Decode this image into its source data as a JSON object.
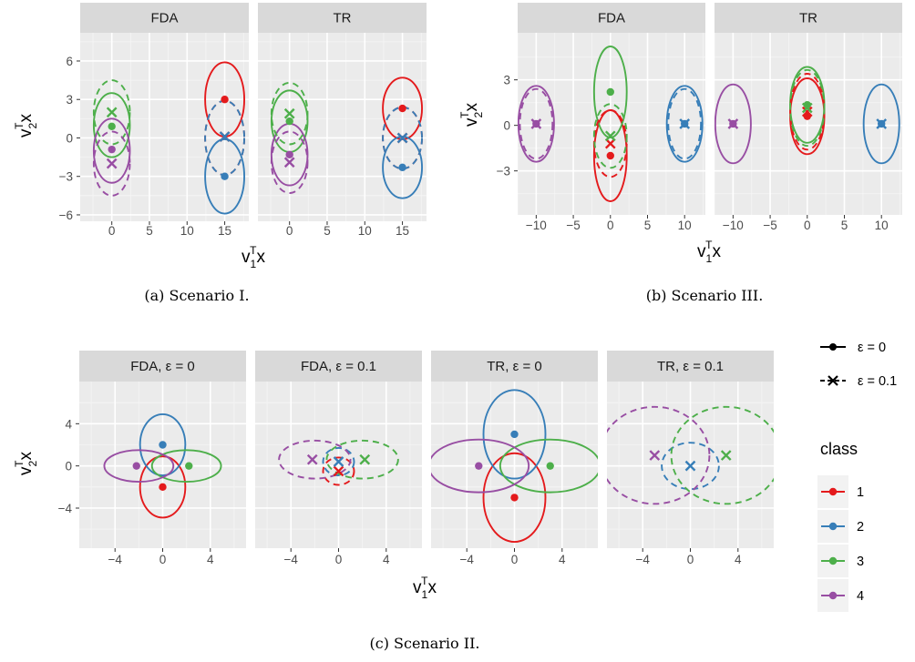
{
  "colors": {
    "1": "#e41a1c",
    "2": "#377eb8",
    "3": "#4daf4a",
    "4": "#984ea3",
    "panel_bg": "#ebebeb",
    "strip_bg": "#d9d9d9",
    "grid_major": "#ffffff"
  },
  "legend": {
    "linetype_entries": [
      {
        "label": "ε = 0",
        "style": "solid",
        "shape": "point"
      },
      {
        "label": "ε = 0.1",
        "style": "dashed",
        "shape": "cross"
      }
    ],
    "class_title": "class",
    "class_entries": [
      {
        "label": "1",
        "class": "1"
      },
      {
        "label": "2",
        "class": "2"
      },
      {
        "label": "3",
        "class": "3"
      },
      {
        "label": "4",
        "class": "4"
      }
    ]
  },
  "chart_data": [
    {
      "id": "a",
      "type": "scatter",
      "caption": "(a) Scenario I.",
      "xlabel": "v",
      "ylabel": "v",
      "xlim": [
        -4.2,
        18.2
      ],
      "ylim": [
        -6.5,
        8.2
      ],
      "xticks": [
        0,
        5,
        10,
        15
      ],
      "xtick_labels": [
        "0",
        "5",
        "10",
        "15"
      ],
      "yticks": [
        -6,
        -3,
        0,
        3,
        6
      ],
      "ytick_labels": [
        "−6",
        "−3",
        "0",
        "3",
        "6"
      ],
      "grid": true,
      "panels": [
        {
          "title": "FDA",
          "ellipses": [
            {
              "class": "1",
              "style": "solid",
              "cx": 15,
              "cy": 3,
              "rx": 2.6,
              "ry": 2.9
            },
            {
              "class": "2",
              "style": "solid",
              "cx": 15,
              "cy": -3,
              "rx": 2.6,
              "ry": 2.9
            },
            {
              "class": "3",
              "style": "solid",
              "cx": 0,
              "cy": 1,
              "rx": 2.4,
              "ry": 2.5
            },
            {
              "class": "4",
              "style": "solid",
              "cx": 0,
              "cy": -1,
              "rx": 2.4,
              "ry": 2.5
            },
            {
              "class": "1",
              "style": "dashed",
              "cx": 15,
              "cy": 0,
              "rx": 2.6,
              "ry": 2.9
            },
            {
              "class": "2",
              "style": "dashed",
              "cx": 15,
              "cy": 0,
              "rx": 2.6,
              "ry": 2.9
            },
            {
              "class": "3",
              "style": "dashed",
              "cx": 0,
              "cy": 2,
              "rx": 2.4,
              "ry": 2.5
            },
            {
              "class": "4",
              "style": "dashed",
              "cx": 0,
              "cy": -2,
              "rx": 2.4,
              "ry": 2.5
            }
          ],
          "points": [
            {
              "class": "1",
              "shape": "point",
              "x": 15,
              "y": 3
            },
            {
              "class": "2",
              "shape": "point",
              "x": 15,
              "y": -3
            },
            {
              "class": "3",
              "shape": "point",
              "x": 0,
              "y": 0.9
            },
            {
              "class": "4",
              "shape": "point",
              "x": 0,
              "y": -0.9
            },
            {
              "class": "1",
              "shape": "cross",
              "x": 15,
              "y": 0.1
            },
            {
              "class": "2",
              "shape": "cross",
              "x": 15,
              "y": 0.1
            },
            {
              "class": "3",
              "shape": "cross",
              "x": 0,
              "y": 2
            },
            {
              "class": "4",
              "shape": "cross",
              "x": 0,
              "y": -2
            }
          ]
        },
        {
          "title": "TR",
          "ellipses": [
            {
              "class": "1",
              "style": "solid",
              "cx": 15,
              "cy": 2.3,
              "rx": 2.6,
              "ry": 2.4
            },
            {
              "class": "2",
              "style": "solid",
              "cx": 15,
              "cy": -2.3,
              "rx": 2.6,
              "ry": 2.4
            },
            {
              "class": "3",
              "style": "solid",
              "cx": 0,
              "cy": 1.3,
              "rx": 2.4,
              "ry": 2.4
            },
            {
              "class": "4",
              "style": "solid",
              "cx": 0,
              "cy": -1.3,
              "rx": 2.4,
              "ry": 2.4
            },
            {
              "class": "1",
              "style": "dashed",
              "cx": 15,
              "cy": 0,
              "rx": 2.6,
              "ry": 2.4
            },
            {
              "class": "2",
              "style": "dashed",
              "cx": 15,
              "cy": 0,
              "rx": 2.6,
              "ry": 2.4
            },
            {
              "class": "3",
              "style": "dashed",
              "cx": 0,
              "cy": 1.9,
              "rx": 2.4,
              "ry": 2.4
            },
            {
              "class": "4",
              "style": "dashed",
              "cx": 0,
              "cy": -1.9,
              "rx": 2.4,
              "ry": 2.4
            }
          ],
          "points": [
            {
              "class": "1",
              "shape": "point",
              "x": 15,
              "y": 2.3
            },
            {
              "class": "2",
              "shape": "point",
              "x": 15,
              "y": -2.3
            },
            {
              "class": "3",
              "shape": "point",
              "x": 0,
              "y": 1.3
            },
            {
              "class": "4",
              "shape": "point",
              "x": 0,
              "y": -1.3
            },
            {
              "class": "1",
              "shape": "cross",
              "x": 15,
              "y": 0
            },
            {
              "class": "2",
              "shape": "cross",
              "x": 15,
              "y": 0
            },
            {
              "class": "3",
              "shape": "cross",
              "x": 0,
              "y": 1.9
            },
            {
              "class": "4",
              "shape": "cross",
              "x": 0,
              "y": -1.9
            }
          ]
        }
      ]
    },
    {
      "id": "b",
      "type": "scatter",
      "caption": "(b) Scenario III.",
      "xlabel": "v",
      "ylabel": "v",
      "xlim": [
        -12.5,
        12.8
      ],
      "ylim": [
        -5.9,
        6.1
      ],
      "xticks": [
        -10,
        -5,
        0,
        5,
        10
      ],
      "xtick_labels": [
        "−10",
        "−5",
        "0",
        "5",
        "10"
      ],
      "yticks": [
        -3,
        0,
        3
      ],
      "ytick_labels": [
        "−3",
        "0",
        "3"
      ],
      "grid": true,
      "panels": [
        {
          "title": "FDA",
          "ellipses": [
            {
              "class": "1",
              "style": "solid",
              "cx": 0,
              "cy": -2,
              "rx": 2.2,
              "ry": 3.0
            },
            {
              "class": "2",
              "style": "solid",
              "cx": 10,
              "cy": 0.1,
              "rx": 2.4,
              "ry": 2.5
            },
            {
              "class": "3",
              "style": "solid",
              "cx": 0,
              "cy": 2.2,
              "rx": 2.2,
              "ry": 3.0
            },
            {
              "class": "4",
              "style": "solid",
              "cx": -10,
              "cy": 0.1,
              "rx": 2.4,
              "ry": 2.5
            },
            {
              "class": "1",
              "style": "dashed",
              "cx": 0,
              "cy": -1.2,
              "rx": 2.2,
              "ry": 2.2
            },
            {
              "class": "2",
              "style": "dashed",
              "cx": 10,
              "cy": 0.1,
              "rx": 2.2,
              "ry": 2.3
            },
            {
              "class": "3",
              "style": "dashed",
              "cx": 0,
              "cy": -0.7,
              "rx": 2.2,
              "ry": 2.1
            },
            {
              "class": "4",
              "style": "dashed",
              "cx": -10,
              "cy": 0.1,
              "rx": 2.2,
              "ry": 2.3
            }
          ],
          "points": [
            {
              "class": "1",
              "shape": "point",
              "x": 0,
              "y": -2
            },
            {
              "class": "2",
              "shape": "point",
              "x": 10,
              "y": 0.1
            },
            {
              "class": "3",
              "shape": "point",
              "x": 0,
              "y": 2.2
            },
            {
              "class": "4",
              "shape": "point",
              "x": -10,
              "y": 0.1
            },
            {
              "class": "1",
              "shape": "cross",
              "x": 0,
              "y": -1.2
            },
            {
              "class": "2",
              "shape": "cross",
              "x": 10,
              "y": 0.1
            },
            {
              "class": "3",
              "shape": "cross",
              "x": 0,
              "y": -0.7
            },
            {
              "class": "4",
              "shape": "cross",
              "x": -10,
              "y": 0.1
            }
          ]
        },
        {
          "title": "TR",
          "ellipses": [
            {
              "class": "1",
              "style": "solid",
              "cx": 0,
              "cy": 0.6,
              "rx": 2.3,
              "ry": 2.5
            },
            {
              "class": "2",
              "style": "solid",
              "cx": 10,
              "cy": 0.1,
              "rx": 2.4,
              "ry": 2.6
            },
            {
              "class": "3",
              "style": "solid",
              "cx": 0,
              "cy": 1.35,
              "rx": 2.3,
              "ry": 2.5
            },
            {
              "class": "4",
              "style": "solid",
              "cx": -10,
              "cy": 0.1,
              "rx": 2.4,
              "ry": 2.6
            },
            {
              "class": "1",
              "style": "dashed",
              "cx": 0,
              "cy": 0.9,
              "rx": 2.3,
              "ry": 2.5
            },
            {
              "class": "3",
              "style": "dashed",
              "cx": 0,
              "cy": 1.15,
              "rx": 2.3,
              "ry": 2.5
            }
          ],
          "points": [
            {
              "class": "1",
              "shape": "point",
              "x": 0,
              "y": 0.6
            },
            {
              "class": "2",
              "shape": "point",
              "x": 10,
              "y": 0.1
            },
            {
              "class": "3",
              "shape": "point",
              "x": 0,
              "y": 1.35
            },
            {
              "class": "4",
              "shape": "point",
              "x": -10,
              "y": 0.1
            },
            {
              "class": "1",
              "shape": "cross",
              "x": 0,
              "y": 0.9
            },
            {
              "class": "2",
              "shape": "cross",
              "x": 10,
              "y": 0.1
            },
            {
              "class": "3",
              "shape": "cross",
              "x": 0,
              "y": 1.15
            },
            {
              "class": "4",
              "shape": "cross",
              "x": -10,
              "y": 0.1
            }
          ]
        }
      ]
    },
    {
      "id": "c",
      "type": "scatter",
      "caption": "(c) Scenario II.",
      "xlabel": "v",
      "ylabel": "v",
      "xlim": [
        -7.0,
        7.0
      ],
      "ylim": [
        -7.8,
        8.0
      ],
      "xticks": [
        -4,
        0,
        4
      ],
      "xtick_labels": [
        "−4",
        "0",
        "4"
      ],
      "yticks": [
        -4,
        0,
        4
      ],
      "ytick_labels": [
        "−4",
        "0",
        "4"
      ],
      "grid": true,
      "panels": [
        {
          "title": "FDA,  ε = 0",
          "ellipses": [
            {
              "class": "1",
              "style": "solid",
              "cx": 0,
              "cy": -2,
              "rx": 1.9,
              "ry": 2.9
            },
            {
              "class": "2",
              "style": "solid",
              "cx": 0,
              "cy": 2,
              "rx": 1.9,
              "ry": 2.9
            },
            {
              "class": "3",
              "style": "solid",
              "cx": 2,
              "cy": 0,
              "rx": 2.9,
              "ry": 1.5
            },
            {
              "class": "4",
              "style": "solid",
              "cx": -2,
              "cy": 0,
              "rx": 2.9,
              "ry": 1.5
            }
          ],
          "points": [
            {
              "class": "1",
              "shape": "point",
              "x": 0,
              "y": -2
            },
            {
              "class": "2",
              "shape": "point",
              "x": 0,
              "y": 2
            },
            {
              "class": "3",
              "shape": "point",
              "x": 2.2,
              "y": 0
            },
            {
              "class": "4",
              "shape": "point",
              "x": -2.2,
              "y": 0
            }
          ]
        },
        {
          "title": "FDA,  ε = 0.1",
          "ellipses": [
            {
              "class": "1",
              "style": "dashed",
              "cx": 0,
              "cy": -0.5,
              "rx": 1.3,
              "ry": 1.3
            },
            {
              "class": "2",
              "style": "dashed",
              "cx": 0,
              "cy": 0.4,
              "rx": 1.3,
              "ry": 1.3
            },
            {
              "class": "3",
              "style": "dashed",
              "cx": 2,
              "cy": 0.6,
              "rx": 3.0,
              "ry": 1.8
            },
            {
              "class": "4",
              "style": "dashed",
              "cx": -2,
              "cy": 0.6,
              "rx": 3.0,
              "ry": 1.8
            }
          ],
          "points": [
            {
              "class": "1",
              "shape": "cross",
              "x": 0,
              "y": -0.5
            },
            {
              "class": "2",
              "shape": "cross",
              "x": 0,
              "y": 0.4
            },
            {
              "class": "3",
              "shape": "cross",
              "x": 2.2,
              "y": 0.6
            },
            {
              "class": "4",
              "shape": "cross",
              "x": -2.2,
              "y": 0.6
            }
          ]
        },
        {
          "title": "TR,  ε = 0",
          "ellipses": [
            {
              "class": "1",
              "style": "solid",
              "cx": 0,
              "cy": -3,
              "rx": 2.6,
              "ry": 4.2
            },
            {
              "class": "2",
              "style": "solid",
              "cx": 0,
              "cy": 3,
              "rx": 2.6,
              "ry": 4.2
            },
            {
              "class": "3",
              "style": "solid",
              "cx": 3,
              "cy": 0,
              "rx": 4.2,
              "ry": 2.5
            },
            {
              "class": "4",
              "style": "solid",
              "cx": -3,
              "cy": 0,
              "rx": 4.2,
              "ry": 2.5
            }
          ],
          "points": [
            {
              "class": "1",
              "shape": "point",
              "x": 0,
              "y": -3
            },
            {
              "class": "2",
              "shape": "point",
              "x": 0,
              "y": 3
            },
            {
              "class": "3",
              "shape": "point",
              "x": 3,
              "y": 0
            },
            {
              "class": "4",
              "shape": "point",
              "x": -3,
              "y": 0
            }
          ]
        },
        {
          "title": "TR,  ε = 0.1",
          "ellipses": [
            {
              "class": "2",
              "style": "dashed",
              "cx": 0,
              "cy": 0,
              "rx": 2.4,
              "ry": 2.2
            },
            {
              "class": "3",
              "style": "dashed",
              "cx": 3,
              "cy": 1,
              "rx": 4.6,
              "ry": 4.6
            },
            {
              "class": "4",
              "style": "dashed",
              "cx": -3,
              "cy": 1,
              "rx": 4.6,
              "ry": 4.6
            }
          ],
          "points": [
            {
              "class": "2",
              "shape": "cross",
              "x": 0,
              "y": 0
            },
            {
              "class": "3",
              "shape": "cross",
              "x": 3,
              "y": 1
            },
            {
              "class": "4",
              "shape": "cross",
              "x": -3,
              "y": 1
            }
          ]
        }
      ]
    }
  ]
}
